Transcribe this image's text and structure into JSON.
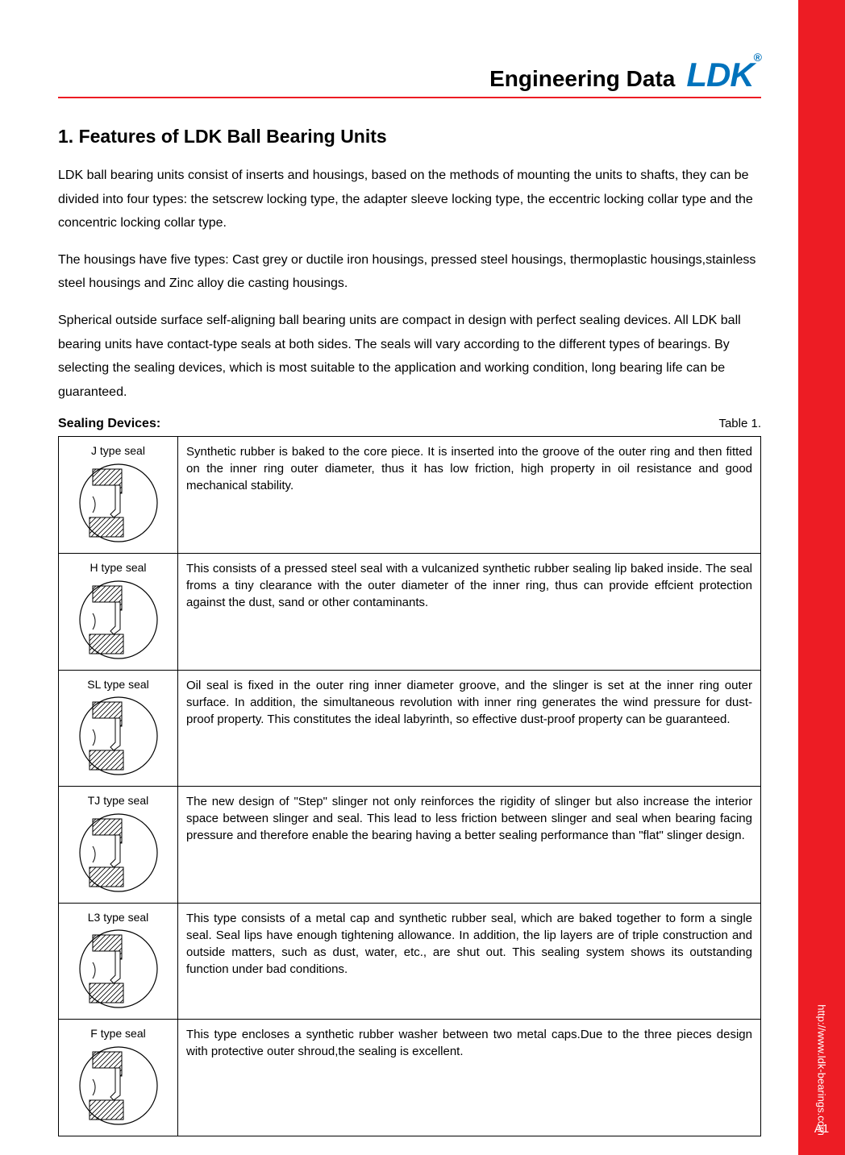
{
  "header": {
    "title": "Engineering Data",
    "logo_text": "LDK",
    "logo_trademark": "®",
    "logo_color": "#0072bc",
    "rule_color": "#ed1c24"
  },
  "sidebar": {
    "bg_color": "#ed1c24",
    "url": "http://www.ldk-bearings.com",
    "page_number": "A1"
  },
  "section": {
    "title": "1. Features of LDK Ball Bearing Units",
    "paragraphs": [
      "LDK ball bearing units consist of inserts and housings, based on the methods of mounting the units to shafts, they can be divided into four types: the setscrew locking type, the adapter sleeve locking type, the eccentric locking collar type and the concentric locking collar type.",
      "The housings have five types: Cast grey or ductile iron housings, pressed steel housings, thermoplastic housings,stainless steel housings and Zinc alloy die casting housings.",
      "Spherical outside surface self-aligning ball bearing units are compact in design with perfect sealing devices. All LDK ball bearing units have contact-type seals at both sides. The seals will vary according to the different types of bearings. By selecting the sealing devices, which is most suitable to the application and working condition, long bearing life can be guaranteed."
    ]
  },
  "table": {
    "heading_left": "Sealing Devices:",
    "heading_right": "Table 1.",
    "rows": [
      {
        "name": "J type seal",
        "desc": "Synthetic rubber is baked to the core piece. It is inserted into the groove of the outer ring and then fitted on the inner ring outer diameter, thus it has low friction, high property in oil resistance and good mechanical stability."
      },
      {
        "name": "H type seal",
        "desc": "This consists of a pressed steel seal with a vulcanized synthetic rubber sealing lip baked inside. The seal froms a tiny clearance with the outer diameter of the inner ring, thus can provide effcient protection against the dust, sand or other contaminants."
      },
      {
        "name": "SL type seal",
        "desc": "Oil seal is fixed in the outer ring inner diameter groove, and the slinger is set at the inner ring outer surface. In addition, the simultaneous revolution with inner ring generates the wind pressure for dust-proof property. This constitutes the ideal labyrinth, so effective dust-proof property can be guaranteed."
      },
      {
        "name": "TJ type seal",
        "desc": "The new design of \"Step\" slinger not only reinforces the rigidity of slinger but also increase the interior space between slinger and seal. This lead to less friction between slinger and seal when bearing facing pressure and therefore enable the bearing having a better sealing performance than \"flat\" slinger design."
      },
      {
        "name": "L3 type seal",
        "desc": "This type consists of a metal cap and synthetic rubber seal, which are baked together to form a single seal. Seal lips have enough tightening allowance. In addition, the lip layers are of triple construction and outside matters, such as dust, water, etc., are shut out. This sealing system shows its outstanding function under bad conditions."
      },
      {
        "name": "F type seal",
        "desc": "This type encloses a synthetic rubber washer between two metal caps.Due to the three pieces design with protective outer shroud,the sealing is excellent."
      }
    ]
  },
  "diagram_style": {
    "stroke": "#000000",
    "stroke_width": 1,
    "fill": "#ffffff"
  }
}
